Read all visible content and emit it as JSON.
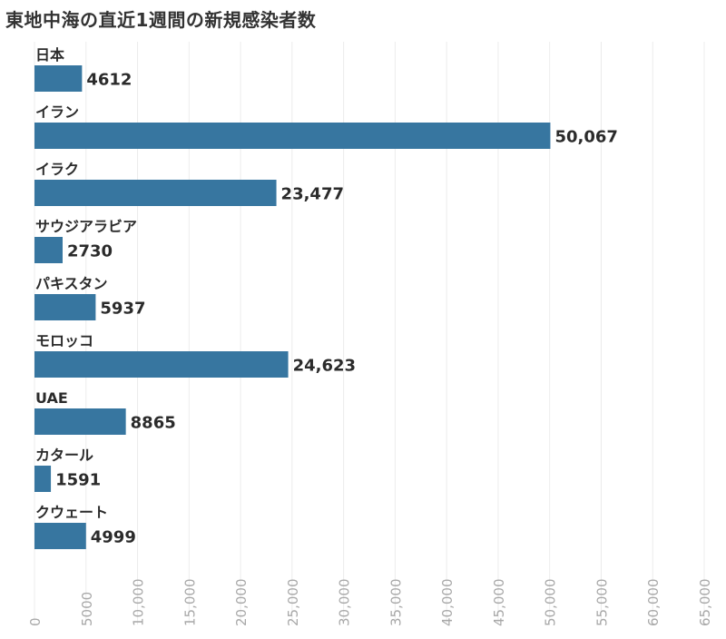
{
  "chart_data": {
    "type": "bar",
    "orientation": "horizontal",
    "title": "東地中海の直近1週間の新規感染者数",
    "categories": [
      "日本",
      "イラン",
      "イラク",
      "サウジアラビア",
      "パキスタン",
      "モロッコ",
      "UAE",
      "カタール",
      "クウェート"
    ],
    "values": [
      4612,
      50067,
      23477,
      2730,
      5937,
      24623,
      8865,
      1591,
      4999
    ],
    "value_labels": [
      "4612",
      "50,067",
      "23,477",
      "2730",
      "5937",
      "24,623",
      "8865",
      "1591",
      "4999"
    ],
    "xlim": [
      0,
      65000
    ],
    "x_ticks": [
      0,
      5000,
      10000,
      15000,
      20000,
      25000,
      30000,
      35000,
      40000,
      45000,
      50000,
      55000,
      60000,
      65000
    ],
    "x_tick_labels": [
      "0",
      "5000",
      "10,000",
      "15,000",
      "20,000",
      "25,000",
      "30,000",
      "35,000",
      "40,000",
      "45,000",
      "50,000",
      "55,000",
      "60,000",
      "65,000"
    ],
    "xlabel": "",
    "ylabel": "",
    "grid": true,
    "legend": false,
    "colors": {
      "bar": "#3776a0",
      "grid": "#ececec",
      "tick_label": "#a8a8a8",
      "category_label": "#2b2b2b",
      "value_label": "#2b2b2b"
    }
  }
}
